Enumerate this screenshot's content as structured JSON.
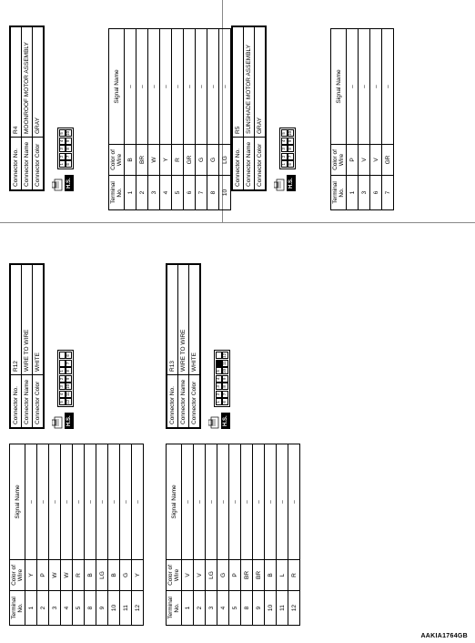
{
  "labels": {
    "connector_no": "Connector No.",
    "connector_name": "Connector Name",
    "connector_color": "Connector Color",
    "terminal_no": "Terminal No.",
    "color_of_wire": "Color of Wire",
    "signal_name": "Signal Name",
    "hs": "H.S."
  },
  "connectors": {
    "r4": {
      "no": "R4",
      "name": "MOONROOF MOTOR ASSEMBLY",
      "color": "GRAY",
      "conn_cells": [
        [
          "1",
          "2",
          "3",
          "4",
          "5"
        ],
        [
          "6",
          "7",
          "8",
          "9",
          "10"
        ]
      ],
      "pins": [
        {
          "t": "1",
          "c": "B",
          "s": "–"
        },
        {
          "t": "2",
          "c": "BR",
          "s": "–"
        },
        {
          "t": "3",
          "c": "W",
          "s": "–"
        },
        {
          "t": "4",
          "c": "Y",
          "s": "–"
        },
        {
          "t": "5",
          "c": "R",
          "s": "–"
        },
        {
          "t": "6",
          "c": "GR",
          "s": "–"
        },
        {
          "t": "7",
          "c": "G",
          "s": "–"
        },
        {
          "t": "8",
          "c": "G",
          "s": "–"
        },
        {
          "t": "10",
          "c": "LG",
          "s": "–"
        }
      ]
    },
    "r5": {
      "no": "R5",
      "name": "SUNSHADE MOTOR ASSEMBLY",
      "color": "GRAY",
      "conn_cells": [
        [
          "1",
          "2",
          "3",
          "4",
          "5"
        ],
        [
          "6",
          "7",
          "8",
          "9",
          "10"
        ]
      ],
      "pins": [
        {
          "t": "1",
          "c": "P",
          "s": "–"
        },
        {
          "t": "3",
          "c": "V",
          "s": "–"
        },
        {
          "t": "6",
          "c": "V",
          "s": "–"
        },
        {
          "t": "7",
          "c": "GR",
          "s": "–"
        }
      ]
    },
    "r12": {
      "no": "R12",
      "name": "WIRE TO WIRE",
      "color": "WHITE",
      "conn_cells": [
        [
          "5",
          "4",
          "3",
          "2",
          "1",
          ""
        ],
        [
          "12",
          "11",
          "10",
          "9",
          "8",
          "7",
          "6"
        ]
      ],
      "pins": [
        {
          "t": "1",
          "c": "Y",
          "s": "–"
        },
        {
          "t": "2",
          "c": "P",
          "s": "–"
        },
        {
          "t": "3",
          "c": "W",
          "s": "–"
        },
        {
          "t": "4",
          "c": "W",
          "s": "–"
        },
        {
          "t": "5",
          "c": "R",
          "s": "–"
        },
        {
          "t": "8",
          "c": "B",
          "s": "–"
        },
        {
          "t": "9",
          "c": "LG",
          "s": "–"
        },
        {
          "t": "10",
          "c": "B",
          "s": "–"
        },
        {
          "t": "11",
          "c": "G",
          "s": "–"
        },
        {
          "t": "12",
          "c": "Y",
          "s": "–"
        }
      ]
    },
    "r13": {
      "no": "R13",
      "name": "WIRE TO WIRE",
      "color": "WHITE",
      "conn_cells": [
        [
          "1",
          "2",
          "3",
          "4",
          "5",
          "*"
        ],
        [
          "6",
          "7",
          "8",
          "9",
          "10",
          "11",
          "12"
        ]
      ],
      "pins": [
        {
          "t": "1",
          "c": "V",
          "s": "–"
        },
        {
          "t": "2",
          "c": "V",
          "s": "–"
        },
        {
          "t": "3",
          "c": "LG",
          "s": "–"
        },
        {
          "t": "4",
          "c": "G",
          "s": "–"
        },
        {
          "t": "5",
          "c": "P",
          "s": "–"
        },
        {
          "t": "8",
          "c": "BR",
          "s": "–"
        },
        {
          "t": "9",
          "c": "BR",
          "s": "–"
        },
        {
          "t": "10",
          "c": "B",
          "s": "–"
        },
        {
          "t": "11",
          "c": "L",
          "s": "–"
        },
        {
          "t": "12",
          "c": "R",
          "s": "–"
        }
      ]
    }
  },
  "footer_id": "AAKIA1764GB"
}
